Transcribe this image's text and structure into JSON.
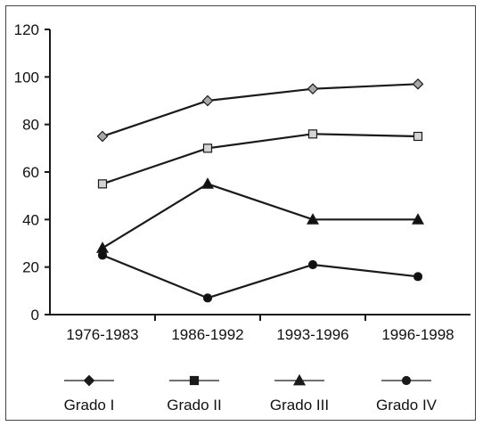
{
  "chart_data": {
    "type": "line",
    "categories": [
      "1976-1983",
      "1986-1992",
      "1993-1996",
      "1996-1998"
    ],
    "ylim": [
      0,
      120
    ],
    "yticks": [
      0,
      20,
      40,
      60,
      80,
      100,
      120
    ],
    "grid": false,
    "legend_position": "bottom",
    "series": [
      {
        "name": "Grado I",
        "values": [
          75,
          90,
          95,
          97
        ],
        "marker": "diamond",
        "marker_fill": "#a8a8a8"
      },
      {
        "name": "Grado II",
        "values": [
          55,
          70,
          76,
          75
        ],
        "marker": "square",
        "marker_fill": "#d4d4d4"
      },
      {
        "name": "Grado III",
        "values": [
          28,
          55,
          40,
          40
        ],
        "marker": "triangle",
        "marker_fill": "#111111"
      },
      {
        "name": "Grado IV",
        "values": [
          25,
          7,
          21,
          16
        ],
        "marker": "circle",
        "marker_fill": "#111111"
      }
    ],
    "line_color": "#1a1a1a"
  }
}
